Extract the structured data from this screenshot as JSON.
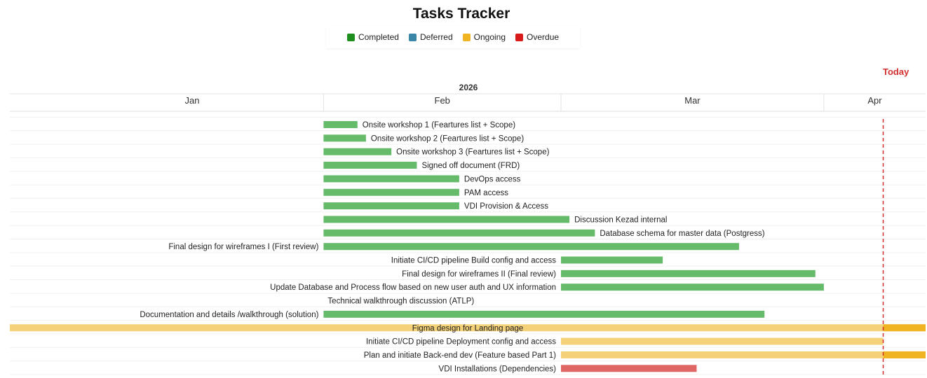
{
  "title": "Tasks Tracker",
  "legend": [
    {
      "label": "Completed",
      "color": "#1e8e1e"
    },
    {
      "label": "Deferred",
      "color": "#3a86a8"
    },
    {
      "label": "Ongoing",
      "color": "#f0b423"
    },
    {
      "label": "Overdue",
      "color": "#d91a1a"
    }
  ],
  "today_label": "Today",
  "year_label": "2026",
  "colors": {
    "Completed": "#66bb6a",
    "Ongoing": "#f5d27a",
    "Ongoing_dark": "#f0b423",
    "Overdue": "#e06666",
    "today_line": "#d32f2f"
  },
  "chart_data": {
    "type": "gantt",
    "title": "Tasks Tracker",
    "year": "2026",
    "today": "2026-04-08",
    "x_range": [
      "2025-12-26",
      "2026-04-13"
    ],
    "months": [
      {
        "label": "Jan",
        "start": "2026-01-01"
      },
      {
        "label": "Feb",
        "start": "2026-02-01"
      },
      {
        "label": "Mar",
        "start": "2026-03-01"
      },
      {
        "label": "Apr",
        "start": "2026-04-01"
      }
    ],
    "tasks": [
      {
        "name": "Onsite workshop 1 (Feartures list + Scope)",
        "status": "Completed",
        "start": "2026-02-01",
        "end": "2026-02-05"
      },
      {
        "name": "Onsite workshop 2 (Feartures list + Scope)",
        "status": "Completed",
        "start": "2026-02-01",
        "end": "2026-02-06"
      },
      {
        "name": "Onsite workshop 3 (Feartures list + Scope)",
        "status": "Completed",
        "start": "2026-02-01",
        "end": "2026-02-09"
      },
      {
        "name": "Signed off document (FRD)",
        "status": "Completed",
        "start": "2026-02-01",
        "end": "2026-02-12"
      },
      {
        "name": "DevOps access",
        "status": "Completed",
        "start": "2026-02-01",
        "end": "2026-02-17"
      },
      {
        "name": "PAM access",
        "status": "Completed",
        "start": "2026-02-01",
        "end": "2026-02-17"
      },
      {
        "name": "VDI Provision & Access",
        "status": "Completed",
        "start": "2026-02-01",
        "end": "2026-02-17"
      },
      {
        "name": "Discussion Kezad internal",
        "status": "Completed",
        "start": "2026-02-01",
        "end": "2026-03-02"
      },
      {
        "name": "Database schema for master data (Postgress)",
        "status": "Completed",
        "start": "2026-02-01",
        "end": "2026-03-05"
      },
      {
        "name": "Final design for wireframes I (First review)",
        "status": "Completed",
        "start": "2026-02-01",
        "end": "2026-03-22"
      },
      {
        "name": "Initiate CI/CD pipeline Build config and access",
        "status": "Completed",
        "start": "2026-03-01",
        "end": "2026-03-13"
      },
      {
        "name": "Final design for wireframes II (Final review)",
        "status": "Completed",
        "start": "2026-03-01",
        "end": "2026-03-31"
      },
      {
        "name": "Update Database and Process flow based on new user auth and UX information",
        "status": "Completed",
        "start": "2026-03-01",
        "end": "2026-04-01"
      },
      {
        "name": "Technical walkthrough discussion (ATLP)",
        "status": "Completed",
        "start": "2026-02-01",
        "end": "2026-02-01"
      },
      {
        "name": "Documentation and details /walkthrough (solution)",
        "status": "Completed",
        "start": "2026-02-01",
        "end": "2026-03-25"
      },
      {
        "name": "Figma design for Landing page",
        "status": "Ongoing",
        "start": "2025-12-26",
        "end": "2026-04-13"
      },
      {
        "name": "Initiate CI/CD pipeline Deployment config and access",
        "status": "Ongoing",
        "start": "2026-03-01",
        "end": "2026-04-08"
      },
      {
        "name": "Plan and initiate Back-end dev (Feature based Part 1)",
        "status": "Ongoing",
        "start": "2026-03-01",
        "end": "2026-04-13"
      },
      {
        "name": "VDI Installations (Dependencies)",
        "status": "Overdue",
        "start": "2026-03-01",
        "end": "2026-03-17"
      }
    ]
  }
}
